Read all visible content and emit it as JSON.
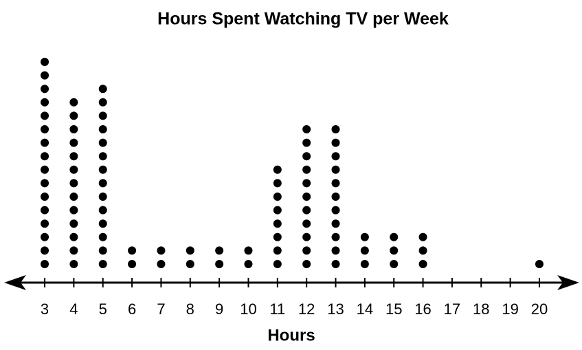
{
  "chart_data": {
    "type": "dot",
    "title": "Hours Spent Watching TV per Week",
    "x_label": "Hours",
    "x": [
      3,
      4,
      5,
      6,
      7,
      8,
      9,
      10,
      11,
      12,
      13,
      14,
      15,
      16,
      17,
      18,
      19,
      20
    ],
    "values": [
      16,
      13,
      14,
      2,
      2,
      2,
      2,
      2,
      8,
      11,
      11,
      3,
      3,
      3,
      0,
      0,
      0,
      1
    ],
    "color": "#000000",
    "xlim": [
      1.7,
      21.3
    ],
    "xticks": [
      3,
      4,
      5,
      6,
      7,
      8,
      9,
      10,
      11,
      12,
      13,
      14,
      15,
      16,
      17,
      18,
      19,
      20
    ]
  }
}
